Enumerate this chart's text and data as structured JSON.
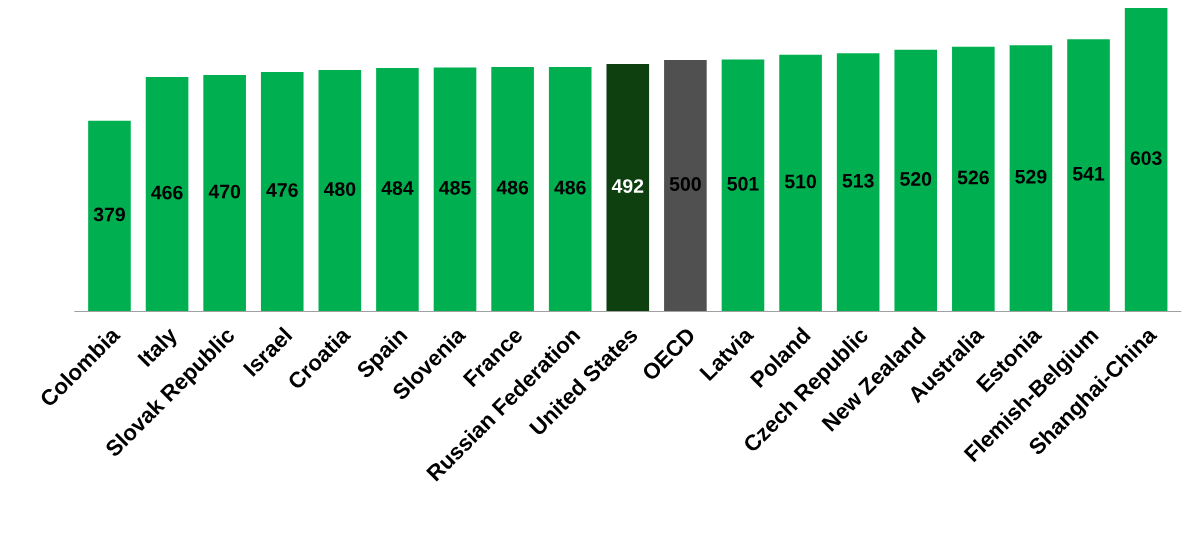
{
  "chart_data": {
    "type": "bar",
    "categories": [
      "Colombia",
      "Italy",
      "Slovak Republic",
      "Israel",
      "Croatia",
      "Spain",
      "Slovenia",
      "France",
      "Russian Federation",
      "United States",
      "OECD",
      "Latvia",
      "Poland",
      "Czech Republic",
      "New Zealand",
      "Australia",
      "Estonia",
      "Flemish-Belgium",
      "Shanghai-China"
    ],
    "values": [
      379,
      466,
      470,
      476,
      480,
      484,
      485,
      486,
      486,
      492,
      500,
      501,
      510,
      513,
      520,
      526,
      529,
      541,
      603
    ],
    "colors": [
      "#00b050",
      "#00b050",
      "#00b050",
      "#00b050",
      "#00b050",
      "#00b050",
      "#00b050",
      "#00b050",
      "#00b050",
      "#0e3f0e",
      "#505050",
      "#00b050",
      "#00b050",
      "#00b050",
      "#00b050",
      "#00b050",
      "#00b050",
      "#00b050",
      "#00b050"
    ],
    "data_labels": true,
    "grid": false,
    "legend": false
  }
}
